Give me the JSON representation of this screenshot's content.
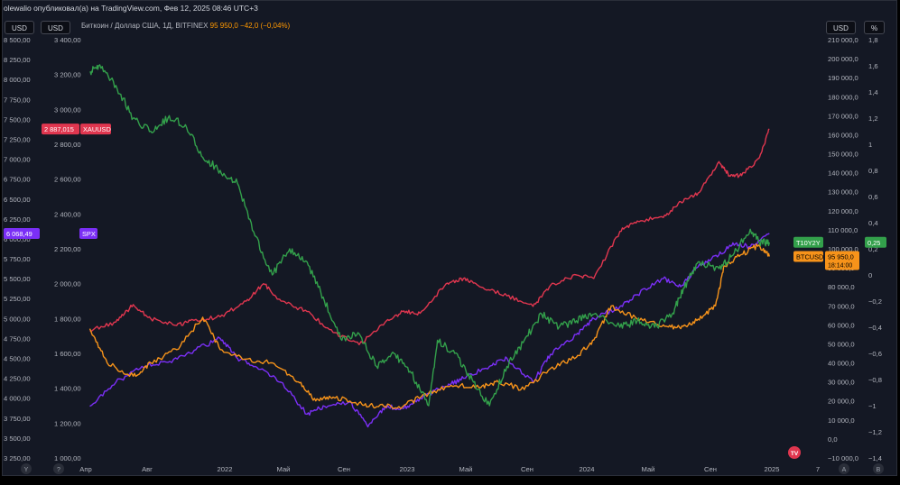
{
  "header": {
    "title": "olewalio опубликовал(а) на TradingView.com, Фев 12, 2025 08:46 UTC+3",
    "symbol_caption": "Биткоин / Доллар США, 1Д, BITFINEX",
    "symbol_price": "95 950,0",
    "symbol_change": "−42,0 (−0,04%)",
    "unit_left_1": "USD",
    "unit_left_2": "USD",
    "unit_right_1": "USD",
    "unit_right_2": "%"
  },
  "bottom_bar": {
    "left_buttons": [
      "Y",
      "?"
    ],
    "right_buttons": [
      "A",
      "B"
    ],
    "logo": "TV"
  },
  "footer_text": "",
  "colors": {
    "btc": "#f7931a",
    "gold": "#e0364f",
    "spx": "#7b2ff7",
    "t10y2y": "#33a04b",
    "background": "#141824",
    "text": "#b2b5be"
  },
  "chart_data": {
    "type": "line",
    "x_ticks": [
      "Апр",
      "Авг",
      "2022",
      "Май",
      "Сен",
      "2023",
      "Май",
      "Сен",
      "2024",
      "Май",
      "Сен",
      "2025",
      "7"
    ],
    "axes": {
      "spx_axis": {
        "ticks": [
          "8 500,00",
          "8 250,00",
          "8 000,00",
          "7 750,00",
          "7 500,00",
          "7 250,00",
          "7 000,00",
          "6 750,00",
          "6 500,00",
          "6 250,00",
          "6 000,00",
          "5 750,00",
          "5 500,00",
          "5 250,00",
          "5 000,00",
          "4 750,00",
          "4 500,00",
          "4 250,00",
          "4 000,00",
          "3 750,00",
          "3 500,00",
          "3 250,00"
        ],
        "range": [
          3250,
          8500
        ]
      },
      "gold_axis": {
        "ticks": [
          "3 400,00",
          "3 200,00",
          "3 000,00",
          "2 800,00",
          "2 600,00",
          "2 400,00",
          "2 200,00",
          "2 000,00",
          "1 800,00",
          "1 600,00",
          "1 400,00",
          "1 200,00",
          "1 000,00"
        ],
        "range": [
          1000,
          3400
        ]
      },
      "btc_axis": {
        "ticks": [
          "210 000,0",
          "200 000,0",
          "190 000,0",
          "180 000,0",
          "170 000,0",
          "160 000,0",
          "150 000,0",
          "140 000,0",
          "130 000,0",
          "120 000,0",
          "110 000,0",
          "100 000,0",
          "90 000,0",
          "80 000,0",
          "70 000,0",
          "60 000,0",
          "50 000,0",
          "40 000,0",
          "30 000,0",
          "20 000,0",
          "10 000,0",
          "0,0",
          "−10 000,0"
        ],
        "range": [
          -10000,
          210000
        ]
      },
      "pct_axis": {
        "ticks": [
          "1,8",
          "1,6",
          "1,4",
          "1,2",
          "1",
          "0,8",
          "0,6",
          "0,4",
          "0,2",
          "0",
          "−0,2",
          "−0,4",
          "−0,6",
          "−0,8",
          "−1",
          "−1,2",
          "−1,4"
        ],
        "range": [
          -1.4,
          1.8
        ]
      }
    },
    "series": [
      {
        "name": "XAUUSD",
        "last_label": "2 887,015",
        "axis": "gold_axis",
        "color": "#e0364f",
        "values": [
          [
            2021.2,
            1730
          ],
          [
            2021.35,
            1780
          ],
          [
            2021.45,
            1880
          ],
          [
            2021.55,
            1800
          ],
          [
            2021.7,
            1760
          ],
          [
            2021.8,
            1790
          ],
          [
            2021.95,
            1810
          ],
          [
            2022.1,
            1900
          ],
          [
            2022.2,
            2000
          ],
          [
            2022.3,
            1900
          ],
          [
            2022.45,
            1840
          ],
          [
            2022.6,
            1720
          ],
          [
            2022.75,
            1650
          ],
          [
            2022.9,
            1780
          ],
          [
            2023.0,
            1840
          ],
          [
            2023.1,
            1830
          ],
          [
            2023.25,
            2000
          ],
          [
            2023.35,
            2030
          ],
          [
            2023.45,
            1980
          ],
          [
            2023.6,
            1930
          ],
          [
            2023.75,
            1870
          ],
          [
            2023.85,
            1990
          ],
          [
            2024.0,
            2050
          ],
          [
            2024.1,
            2030
          ],
          [
            2024.25,
            2300
          ],
          [
            2024.35,
            2360
          ],
          [
            2024.5,
            2380
          ],
          [
            2024.6,
            2470
          ],
          [
            2024.7,
            2520
          ],
          [
            2024.82,
            2700
          ],
          [
            2024.88,
            2620
          ],
          [
            2024.95,
            2620
          ],
          [
            2025.05,
            2720
          ],
          [
            2025.11,
            2887
          ]
        ]
      },
      {
        "name": "SPX",
        "last_label": "6 068,49",
        "axis": "spx_axis",
        "color": "#7b2ff7",
        "values": [
          [
            2021.2,
            3900
          ],
          [
            2021.35,
            4200
          ],
          [
            2021.5,
            4400
          ],
          [
            2021.65,
            4450
          ],
          [
            2021.8,
            4600
          ],
          [
            2021.95,
            4750
          ],
          [
            2022.05,
            4500
          ],
          [
            2022.15,
            4400
          ],
          [
            2022.3,
            4200
          ],
          [
            2022.45,
            3800
          ],
          [
            2022.55,
            3900
          ],
          [
            2022.7,
            3950
          ],
          [
            2022.8,
            3640
          ],
          [
            2022.9,
            3900
          ],
          [
            2023.0,
            3870
          ],
          [
            2023.1,
            4000
          ],
          [
            2023.25,
            4150
          ],
          [
            2023.35,
            4250
          ],
          [
            2023.5,
            4400
          ],
          [
            2023.6,
            4500
          ],
          [
            2023.75,
            4200
          ],
          [
            2023.85,
            4550
          ],
          [
            2024.0,
            4800
          ],
          [
            2024.1,
            5000
          ],
          [
            2024.25,
            5150
          ],
          [
            2024.35,
            5300
          ],
          [
            2024.5,
            5500
          ],
          [
            2024.6,
            5400
          ],
          [
            2024.7,
            5650
          ],
          [
            2024.82,
            5800
          ],
          [
            2024.9,
            5950
          ],
          [
            2025.0,
            5900
          ],
          [
            2025.11,
            6068
          ]
        ]
      },
      {
        "name": "BTCUSD",
        "last_label": "95 950,0",
        "countdown": "18:14:00",
        "axis": "btc_axis",
        "color": "#f7931a",
        "values": [
          [
            2021.2,
            58000
          ],
          [
            2021.3,
            40000
          ],
          [
            2021.45,
            33000
          ],
          [
            2021.55,
            40000
          ],
          [
            2021.7,
            47000
          ],
          [
            2021.85,
            64000
          ],
          [
            2021.95,
            47000
          ],
          [
            2022.1,
            42000
          ],
          [
            2022.25,
            40000
          ],
          [
            2022.4,
            30000
          ],
          [
            2022.5,
            20000
          ],
          [
            2022.6,
            22000
          ],
          [
            2022.75,
            19000
          ],
          [
            2022.85,
            17000
          ],
          [
            2023.0,
            17000
          ],
          [
            2023.15,
            24000
          ],
          [
            2023.3,
            28000
          ],
          [
            2023.45,
            27000
          ],
          [
            2023.55,
            30000
          ],
          [
            2023.7,
            26000
          ],
          [
            2023.85,
            37000
          ],
          [
            2024.0,
            43000
          ],
          [
            2024.1,
            52000
          ],
          [
            2024.2,
            70000
          ],
          [
            2024.35,
            63000
          ],
          [
            2024.5,
            60000
          ],
          [
            2024.6,
            58000
          ],
          [
            2024.7,
            63000
          ],
          [
            2024.8,
            70000
          ],
          [
            2024.85,
            91000
          ],
          [
            2024.95,
            97000
          ],
          [
            2025.05,
            102000
          ],
          [
            2025.11,
            95950
          ]
        ]
      },
      {
        "name": "T10Y2Y",
        "last_label": "0,25",
        "axis": "pct_axis",
        "color": "#33a04b",
        "values": [
          [
            2021.2,
            1.55
          ],
          [
            2021.25,
            1.6
          ],
          [
            2021.35,
            1.45
          ],
          [
            2021.45,
            1.2
          ],
          [
            2021.55,
            1.1
          ],
          [
            2021.65,
            1.2
          ],
          [
            2021.75,
            1.15
          ],
          [
            2021.85,
            0.9
          ],
          [
            2021.95,
            0.8
          ],
          [
            2022.05,
            0.7
          ],
          [
            2022.15,
            0.3
          ],
          [
            2022.25,
            0.0
          ],
          [
            2022.35,
            0.2
          ],
          [
            2022.45,
            0.1
          ],
          [
            2022.55,
            -0.2
          ],
          [
            2022.65,
            -0.5
          ],
          [
            2022.75,
            -0.45
          ],
          [
            2022.85,
            -0.7
          ],
          [
            2022.95,
            -0.6
          ],
          [
            2023.05,
            -0.75
          ],
          [
            2023.15,
            -1.0
          ],
          [
            2023.2,
            -0.5
          ],
          [
            2023.3,
            -0.6
          ],
          [
            2023.4,
            -0.8
          ],
          [
            2023.5,
            -1.0
          ],
          [
            2023.6,
            -0.7
          ],
          [
            2023.7,
            -0.5
          ],
          [
            2023.8,
            -0.3
          ],
          [
            2023.9,
            -0.4
          ],
          [
            2024.0,
            -0.35
          ],
          [
            2024.1,
            -0.3
          ],
          [
            2024.25,
            -0.4
          ],
          [
            2024.35,
            -0.35
          ],
          [
            2024.45,
            -0.4
          ],
          [
            2024.55,
            -0.3
          ],
          [
            2024.62,
            -0.1
          ],
          [
            2024.7,
            0.1
          ],
          [
            2024.82,
            0.05
          ],
          [
            2024.9,
            0.15
          ],
          [
            2025.0,
            0.35
          ],
          [
            2025.05,
            0.25
          ],
          [
            2025.11,
            0.25
          ]
        ]
      }
    ]
  }
}
